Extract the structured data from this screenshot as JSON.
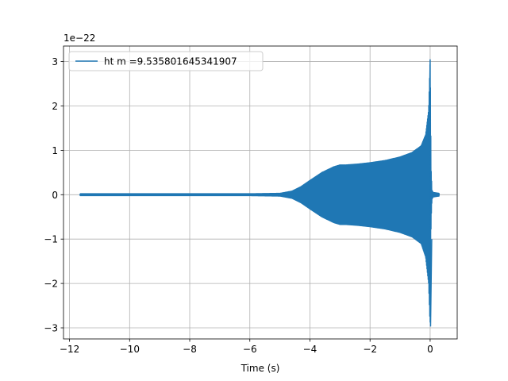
{
  "chart_data": {
    "type": "line",
    "title": "",
    "xlabel": "Time (s)",
    "ylabel": "",
    "y_offset_label": "1e−22",
    "xlim": [
      -12.2,
      0.9
    ],
    "ylim": [
      -3.25,
      3.35
    ],
    "x_ticks": [
      -12,
      -10,
      -8,
      -6,
      -4,
      -2,
      0
    ],
    "x_tick_labels": [
      "−12",
      "−10",
      "−8",
      "−6",
      "−4",
      "−2",
      "0"
    ],
    "y_ticks": [
      -3,
      -2,
      -1,
      0,
      1,
      2,
      3
    ],
    "y_tick_labels": [
      "−3",
      "−2",
      "−1",
      "0",
      "1",
      "2",
      "3"
    ],
    "grid": true,
    "legend_position": "top-left",
    "series": [
      {
        "name": "ht m =9.535801645341907",
        "color": "#1f77b4",
        "x_start": -11.65,
        "x_end": 0.3,
        "x_peak": 0.0,
        "envelope": {
          "x": [
            -11.65,
            -6,
            -5.0,
            -4.6,
            -4.3,
            -4.0,
            -3.6,
            -3.2,
            -3.0,
            -2.8,
            -2.4,
            -2.0,
            -1.5,
            -1.0,
            -0.6,
            -0.3,
            -0.15,
            -0.05,
            0.0,
            0.03,
            0.06,
            0.1,
            0.3
          ],
          "y": [
            0.02,
            0.02,
            0.03,
            0.08,
            0.18,
            0.32,
            0.5,
            0.63,
            0.67,
            0.67,
            0.69,
            0.72,
            0.77,
            0.85,
            0.95,
            1.1,
            1.35,
            1.9,
            3.05,
            0.6,
            0.1,
            0.05,
            0.03
          ]
        },
        "envelope_lower": {
          "x": [
            -11.65,
            -6,
            -5.0,
            -4.6,
            -4.3,
            -4.0,
            -3.6,
            -3.2,
            -3.0,
            -2.8,
            -2.4,
            -2.0,
            -1.5,
            -1.0,
            -0.6,
            -0.3,
            -0.15,
            -0.05,
            0.0,
            0.03,
            0.06,
            0.1,
            0.3
          ],
          "y": [
            -0.02,
            -0.02,
            -0.03,
            -0.08,
            -0.18,
            -0.32,
            -0.5,
            -0.63,
            -0.67,
            -0.67,
            -0.69,
            -0.72,
            -0.77,
            -0.85,
            -0.95,
            -1.1,
            -1.4,
            -2.0,
            -2.97,
            -0.6,
            -0.1,
            -0.05,
            -0.03
          ]
        }
      }
    ]
  }
}
